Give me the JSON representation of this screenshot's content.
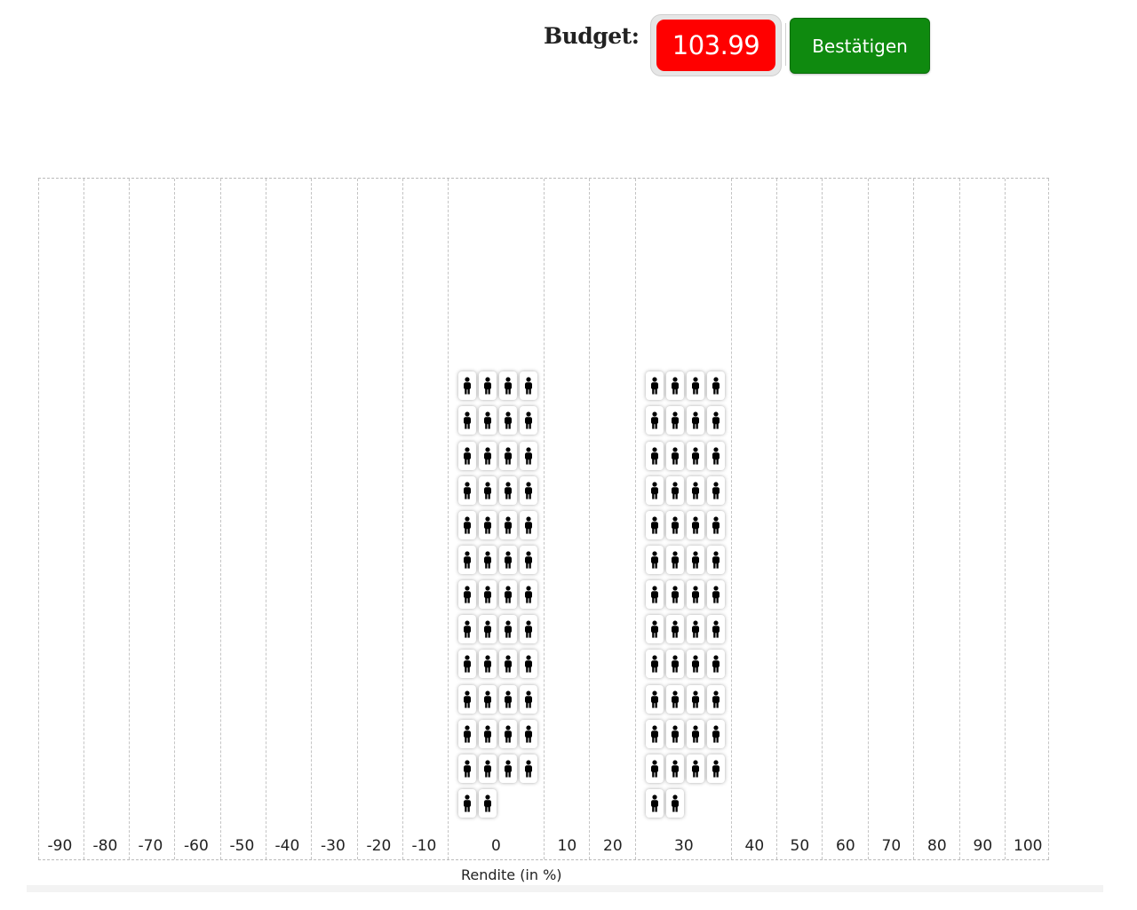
{
  "header": {
    "budget_label": "Budget:",
    "budget_value": "103.99",
    "confirm_label": "Bestätigen",
    "colors": {
      "budget_bg": "#ff0000",
      "confirm_bg": "#0f8a0f"
    }
  },
  "chart_data": {
    "type": "pictogram",
    "xlabel": "Rendite (in %)",
    "tick_labels": [
      "-90",
      "-80",
      "-70",
      "-60",
      "-50",
      "-40",
      "-30",
      "-20",
      "-10",
      "0",
      "10",
      "20",
      "30",
      "40",
      "50",
      "60",
      "70",
      "80",
      "90",
      "100"
    ],
    "series": [
      {
        "category": "0",
        "tokens": 50
      },
      {
        "category": "30",
        "tokens": 50
      }
    ],
    "icon": "person-icon",
    "tokens_per_row": 4
  }
}
